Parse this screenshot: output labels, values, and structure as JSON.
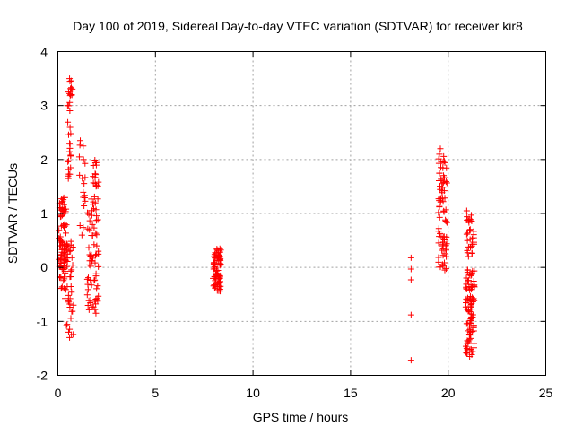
{
  "chart_data": {
    "type": "scatter",
    "title": "Day 100 of 2019, Sidereal Day-to-day VTEC variation (SDTVAR) for receiver kir8",
    "xlabel": "GPS time / hours",
    "ylabel": "SDTVAR / TECUs",
    "xlim": [
      0,
      25
    ],
    "ylim": [
      -2,
      4
    ],
    "x_ticks": [
      0,
      5,
      10,
      15,
      20,
      25
    ],
    "x_tick_labels": [
      "0",
      "5",
      "10",
      "15",
      "20",
      "25"
    ],
    "y_ticks": [
      -2,
      -1,
      0,
      1,
      2,
      3,
      4
    ],
    "y_tick_labels": [
      "-2",
      "-1",
      "0",
      "1",
      "2",
      "3",
      "4"
    ],
    "grid": true,
    "marker": "+",
    "color": "#ff0000",
    "clusters": [
      {
        "x_range": [
          0.05,
          0.45
        ],
        "y_range": [
          -0.4,
          1.3
        ],
        "n": 90
      },
      {
        "x_range": [
          0.35,
          0.8
        ],
        "y_range": [
          -1.3,
          0.5
        ],
        "n": 40
      },
      {
        "x_range": [
          0.5,
          0.7
        ],
        "y_range": [
          1.6,
          2.7
        ],
        "n": 18
      },
      {
        "x_range": [
          0.55,
          0.75
        ],
        "y_range": [
          2.9,
          3.5
        ],
        "n": 10
      },
      {
        "x_range": [
          1.1,
          1.4
        ],
        "y_range": [
          0.5,
          2.3
        ],
        "n": 14
      },
      {
        "x_range": [
          1.5,
          2.1
        ],
        "y_range": [
          -0.8,
          1.35
        ],
        "n": 70
      },
      {
        "x_range": [
          1.8,
          2.1
        ],
        "y_range": [
          1.5,
          2.0
        ],
        "n": 16
      },
      {
        "x_range": [
          7.95,
          8.35
        ],
        "y_range": [
          -0.45,
          0.35
        ],
        "n": 80
      },
      {
        "x_range": [
          19.5,
          19.95
        ],
        "y_range": [
          -0.05,
          2.2
        ],
        "n": 80
      },
      {
        "x_range": [
          20.9,
          21.35
        ],
        "y_range": [
          -1.65,
          0.0
        ],
        "n": 90
      },
      {
        "x_range": [
          20.95,
          21.35
        ],
        "y_range": [
          0.2,
          1.0
        ],
        "n": 30
      }
    ],
    "points": [
      [
        18.1,
        0.18
      ],
      [
        18.1,
        -0.03
      ],
      [
        18.1,
        -0.23
      ],
      [
        18.1,
        -0.88
      ],
      [
        18.1,
        -1.72
      ],
      [
        0.6,
        3.5
      ],
      [
        0.62,
        3.45
      ],
      [
        0.55,
        3.25
      ],
      [
        0.6,
        3.22
      ],
      [
        0.5,
        3.0
      ],
      [
        1.15,
        2.35
      ],
      [
        1.3,
        2.25
      ],
      [
        1.1,
        2.05
      ],
      [
        1.25,
        1.65
      ],
      [
        1.3,
        1.3
      ],
      [
        0.6,
        -1.3
      ],
      [
        0.55,
        -1.2
      ],
      [
        0.8,
        -0.7
      ],
      [
        1.9,
        -0.78
      ],
      [
        1.95,
        -0.85
      ],
      [
        19.6,
        2.2
      ],
      [
        19.55,
        2.1
      ],
      [
        20.95,
        1.05
      ],
      [
        21.1,
        -1.65
      ],
      [
        20.95,
        -1.5
      ]
    ]
  }
}
